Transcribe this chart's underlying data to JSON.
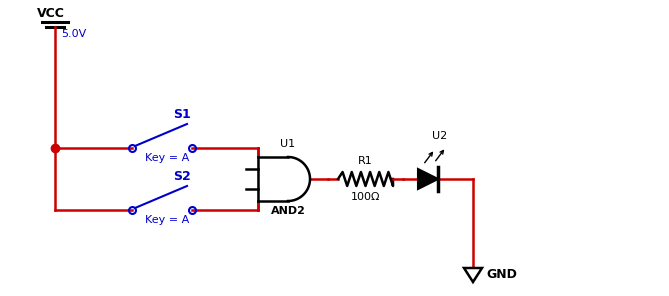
{
  "bg_color": "#ffffff",
  "wire_color": "#cc0000",
  "component_color": "#000000",
  "label_color": "#0000cc",
  "vcc_label": "VCC",
  "voltage_label": "5.0V",
  "s1_label": "S1",
  "s2_label": "S2",
  "key1_label": "Key = A",
  "key2_label": "Key = A",
  "u1_label": "U1",
  "gate_label": "AND2",
  "r1_label": "R1",
  "r1_value": "100Ω",
  "u2_label": "U2",
  "gnd_label": "GND",
  "figsize": [
    6.69,
    2.96
  ],
  "dpi": 100
}
